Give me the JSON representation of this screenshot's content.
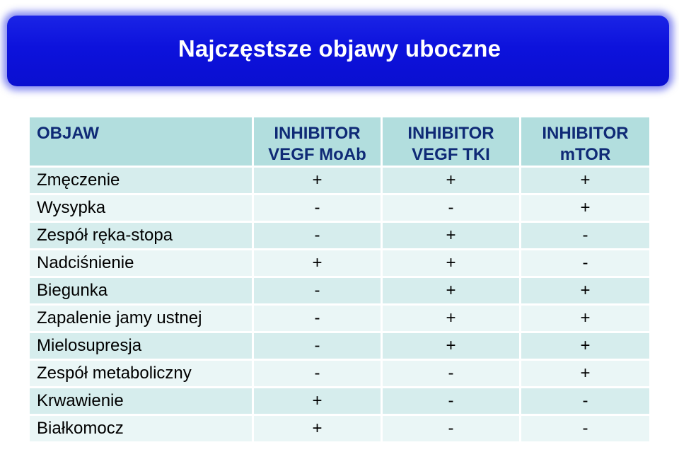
{
  "slide": {
    "title": "Najczęstsze objawy uboczne",
    "banner_color": "#0d12dc",
    "header_bg": "#b2dede",
    "row_bg_dark": "#d6eded",
    "row_bg_light": "#eaf6f6"
  },
  "table": {
    "headers": [
      {
        "line1": "OBJAW",
        "line2": ""
      },
      {
        "line1": "INHIBITOR",
        "line2": "VEGF MoAb"
      },
      {
        "line1": "INHIBITOR",
        "line2": "VEGF TKI"
      },
      {
        "line1": "INHIBITOR",
        "line2": "mTOR"
      }
    ],
    "rows": [
      {
        "name": "Zmęczenie",
        "v1": "+",
        "v2": "+",
        "v3": "+"
      },
      {
        "name": "Wysypka",
        "v1": "-",
        "v2": "-",
        "v3": "+"
      },
      {
        "name": "Zespół ręka-stopa",
        "v1": "-",
        "v2": "+",
        "v3": "-"
      },
      {
        "name": "Nadciśnienie",
        "v1": "+",
        "v2": "+",
        "v3": "-"
      },
      {
        "name": "Biegunka",
        "v1": "-",
        "v2": "+",
        "v3": "+"
      },
      {
        "name": "Zapalenie jamy ustnej",
        "v1": "-",
        "v2": "+",
        "v3": "+"
      },
      {
        "name": "Mielosupresja",
        "v1": "-",
        "v2": "+",
        "v3": "+"
      },
      {
        "name": "Zespół metaboliczny",
        "v1": "-",
        "v2": "-",
        "v3": "+"
      },
      {
        "name": "Krwawienie",
        "v1": "+",
        "v2": "-",
        "v3": "-"
      },
      {
        "name": "Białkomocz",
        "v1": "+",
        "v2": "-",
        "v3": "-"
      }
    ]
  }
}
